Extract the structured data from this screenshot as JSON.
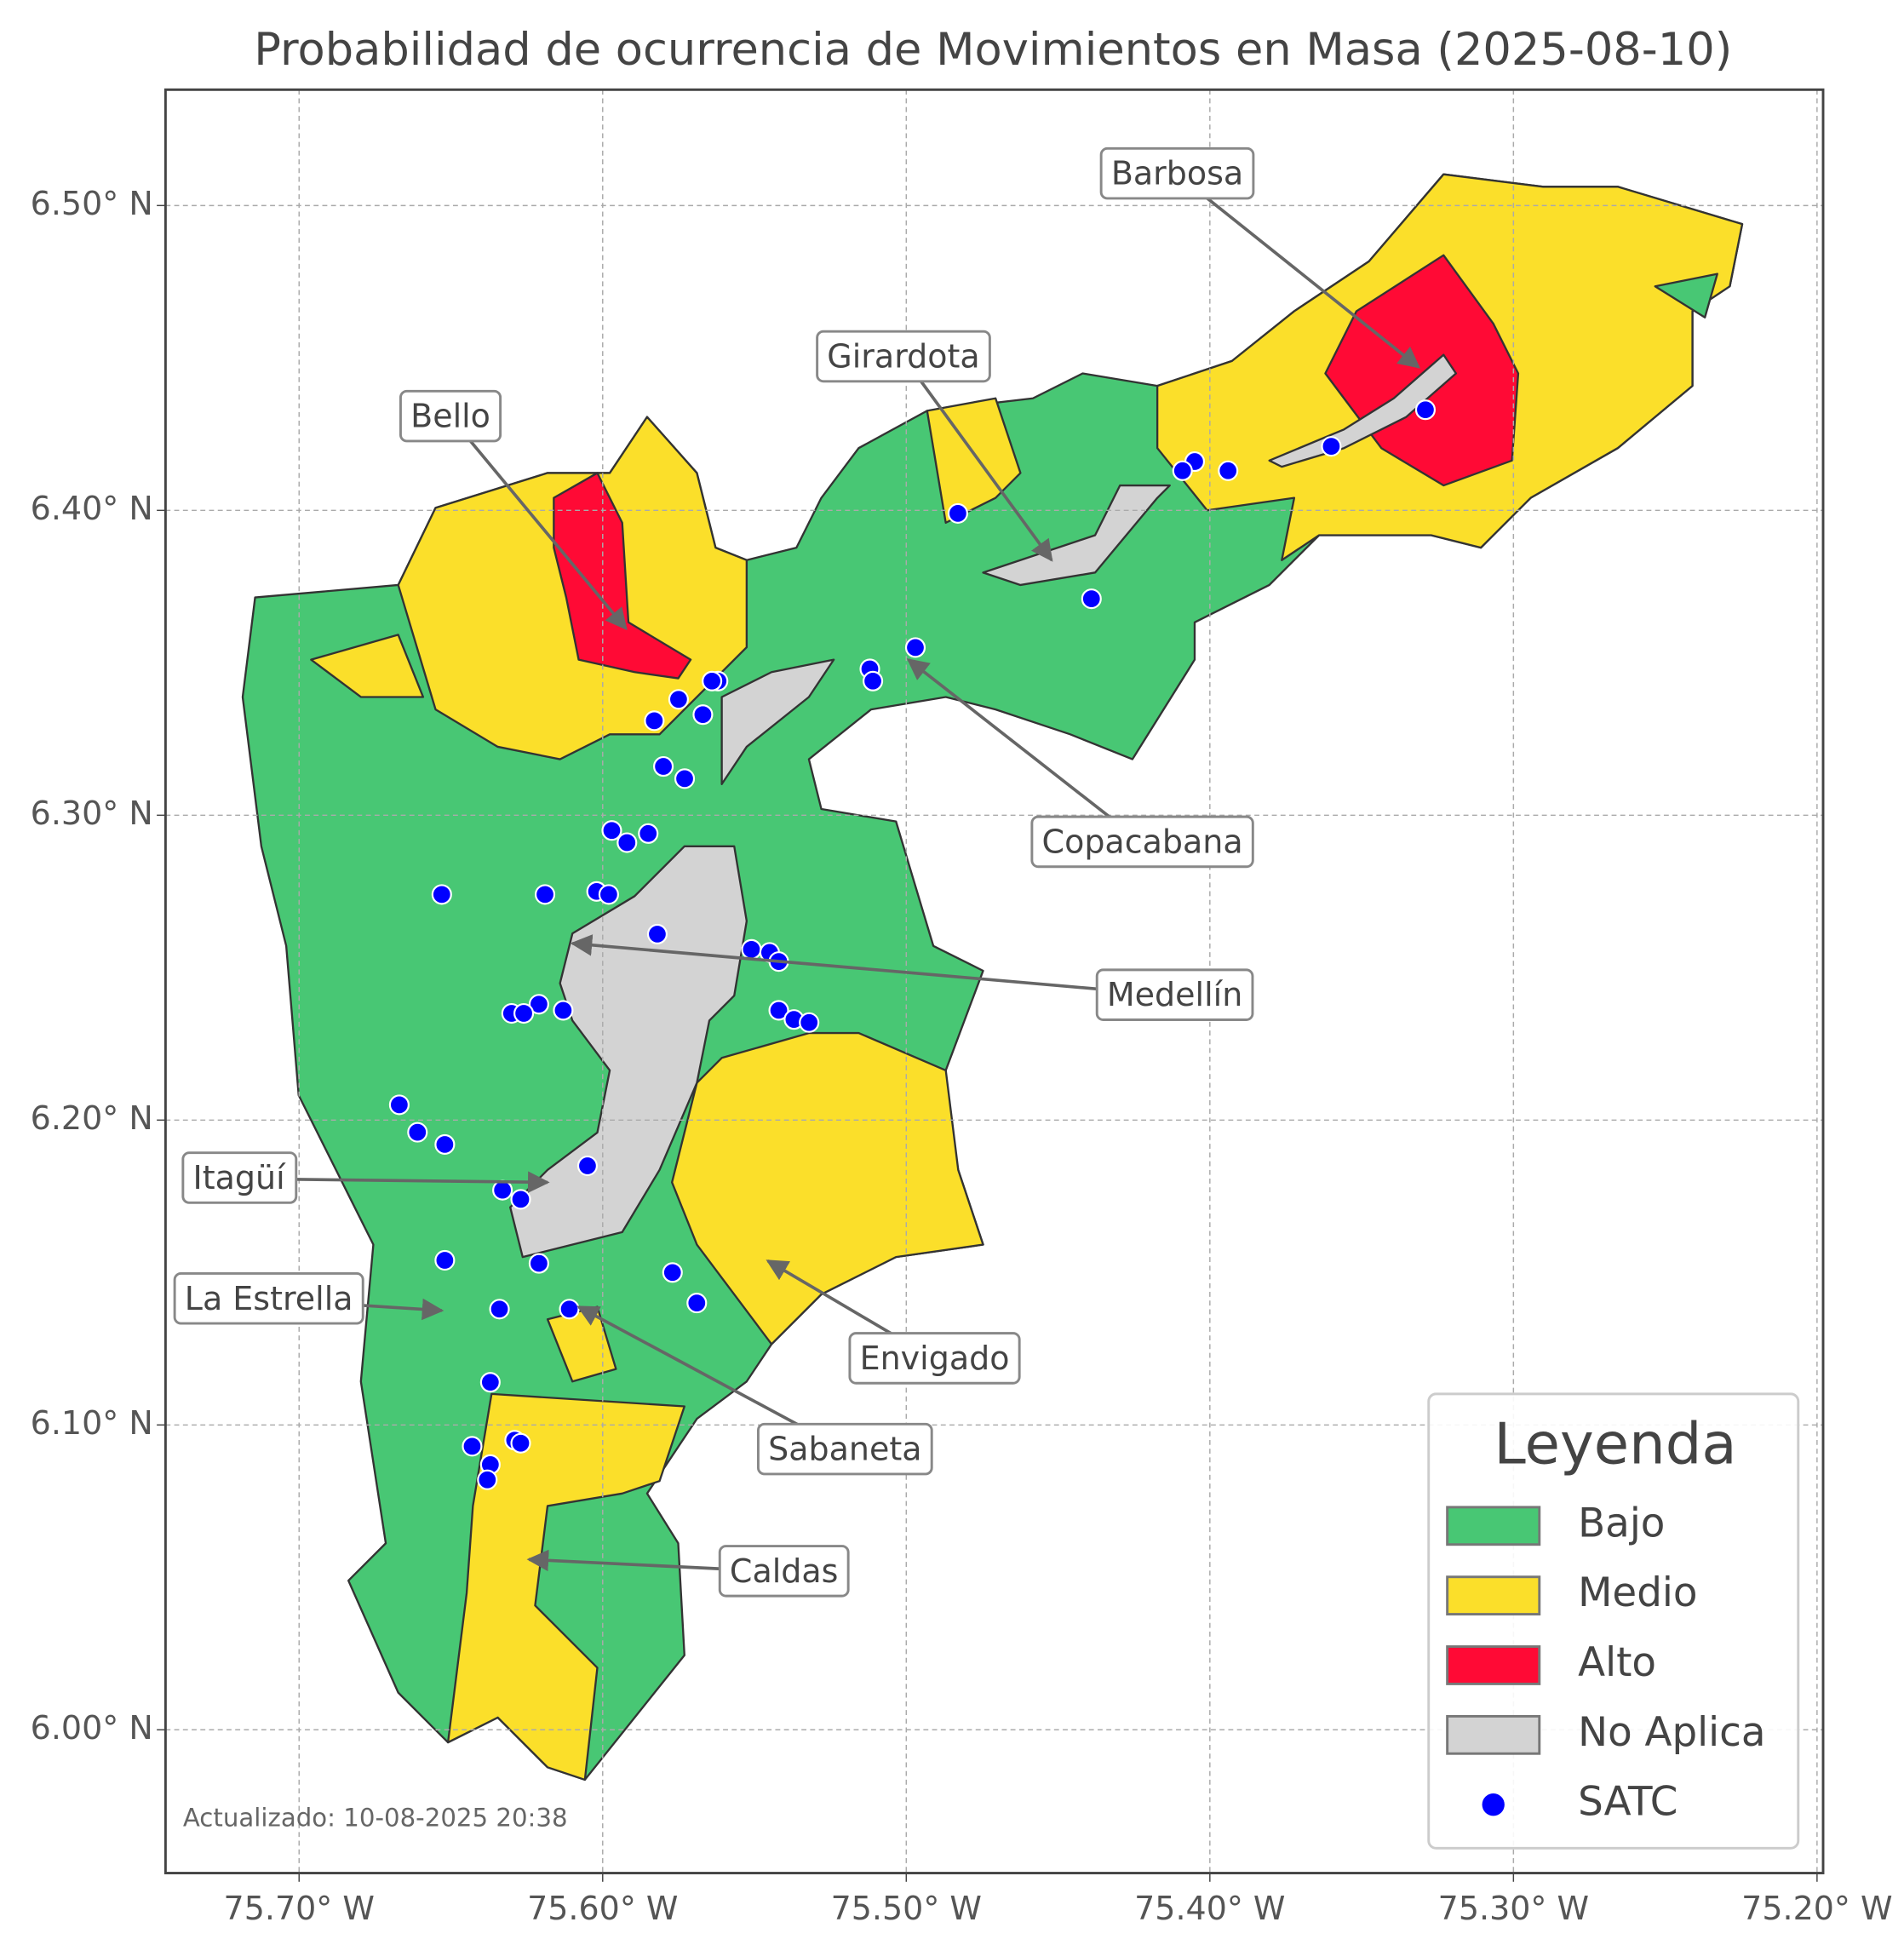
{
  "title": "Probabilidad de ocurrencia de Movimientos en Masa (2025-08-10)",
  "map": {
    "xlim": [
      -75.744,
      -75.198
    ],
    "ylim": [
      5.953,
      6.538
    ],
    "grid": true,
    "xticks": [
      {
        "value": -75.7,
        "label": "75.70° W"
      },
      {
        "value": -75.6,
        "label": "75.60° W"
      },
      {
        "value": -75.5,
        "label": "75.50° W"
      },
      {
        "value": -75.4,
        "label": "75.40° W"
      },
      {
        "value": -75.3,
        "label": "75.30° W"
      },
      {
        "value": -75.2,
        "label": "75.20° W"
      }
    ],
    "yticks": [
      {
        "value": 6.0,
        "label": "6.00° N"
      },
      {
        "value": 6.1,
        "label": "6.10° N"
      },
      {
        "value": 6.2,
        "label": "6.20° N"
      },
      {
        "value": 6.3,
        "label": "6.30° N"
      },
      {
        "value": 6.4,
        "label": "6.40° N"
      },
      {
        "value": 6.5,
        "label": "6.50° N"
      }
    ],
    "points": {
      "lon": [
        -75.329,
        -75.36,
        -75.394,
        -75.405,
        -75.409,
        -75.483,
        -75.439,
        -75.497,
        -75.512,
        -75.511,
        -75.562,
        -75.564,
        -75.575,
        -75.567,
        -75.583,
        -75.58,
        -75.573,
        -75.597,
        -75.592,
        -75.585,
        -75.619,
        -75.602,
        -75.598,
        -75.653,
        -75.582,
        -75.551,
        -75.545,
        -75.542,
        -75.621,
        -75.63,
        -75.626,
        -75.613,
        -75.542,
        -75.537,
        -75.532,
        -75.667,
        -75.661,
        -75.652,
        -75.605,
        -75.633,
        -75.627,
        -75.652,
        -75.621,
        -75.577,
        -75.634,
        -75.611,
        -75.569,
        -75.637,
        -75.643,
        -75.629,
        -75.627,
        -75.637,
        -75.638
      ],
      "lat": [
        6.433,
        6.421,
        6.413,
        6.416,
        6.413,
        6.399,
        6.371,
        6.355,
        6.348,
        6.344,
        6.344,
        6.344,
        6.338,
        6.333,
        6.331,
        6.316,
        6.312,
        6.295,
        6.291,
        6.294,
        6.274,
        6.275,
        6.274,
        6.274,
        6.261,
        6.256,
        6.255,
        6.252,
        6.238,
        6.235,
        6.235,
        6.236,
        6.236,
        6.233,
        6.232,
        6.205,
        6.196,
        6.192,
        6.185,
        6.177,
        6.174,
        6.154,
        6.153,
        6.15,
        6.138,
        6.138,
        6.14,
        6.114,
        6.093,
        6.095,
        6.094,
        6.087,
        6.082
      ]
    }
  },
  "annotations": [
    "Barbosa",
    "Girardota",
    "Bello",
    "Copacabana",
    "Medellín",
    "Itagüí",
    "La Estrella",
    "Envigado",
    "Sabaneta",
    "Caldas"
  ],
  "legend": {
    "title": "Leyenda",
    "items": [
      {
        "label": "Bajo",
        "color": "#48c774"
      },
      {
        "label": "Medio",
        "color": "#fbdf2a"
      },
      {
        "label": "Alto",
        "color": "#ff0a35"
      },
      {
        "label": "No Aplica",
        "color": "#d3d3d3"
      },
      {
        "label": "SATC",
        "color": "#0000ff"
      }
    ]
  },
  "footer": "Actualizado: 10-08-2025 20:38"
}
